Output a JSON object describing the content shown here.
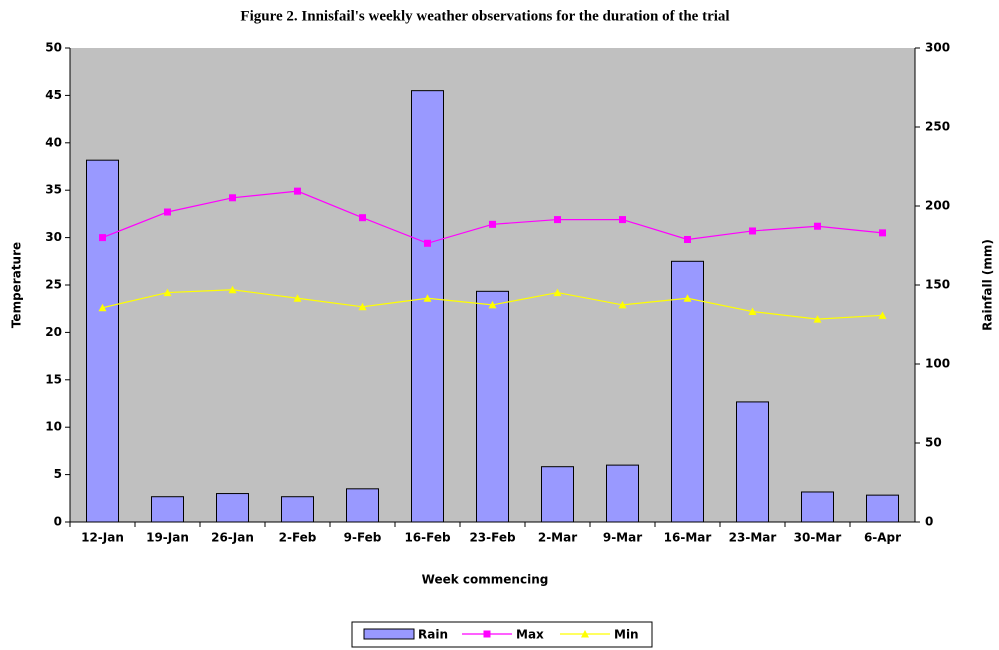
{
  "chart_data": {
    "type": "bar",
    "title": "Figure 2. Innisfail's weekly weather observations  for the duration  of the trial",
    "x_label": "Week commencing",
    "y_label": "Temperature",
    "y2_label": "Rainfall (mm)",
    "categories": [
      "12-Jan",
      "19-Jan",
      "26-Jan",
      "2-Feb",
      "9-Feb",
      "16-Feb",
      "23-Feb",
      "2-Mar",
      "9-Mar",
      "16-Mar",
      "23-Mar",
      "30-Mar",
      "6-Apr"
    ],
    "series": [
      {
        "name": "Rain",
        "type": "bar",
        "axis": "y2",
        "color": "#9999ff",
        "values": [
          229,
          16,
          18,
          16,
          21,
          273,
          146,
          35,
          36,
          165,
          76,
          19,
          17
        ]
      },
      {
        "name": "Max",
        "type": "line",
        "marker": "square",
        "color": "#ff00ff",
        "values": [
          30.0,
          32.7,
          34.2,
          34.9,
          32.1,
          29.4,
          31.4,
          31.9,
          31.9,
          29.8,
          30.7,
          31.2,
          30.5
        ]
      },
      {
        "name": "Min",
        "type": "line",
        "marker": "triangle",
        "color": "#ffff00",
        "values": [
          22.6,
          24.2,
          24.5,
          23.6,
          22.7,
          23.6,
          22.9,
          24.2,
          22.9,
          23.6,
          22.2,
          21.4,
          21.8
        ]
      }
    ],
    "ylim": [
      0,
      50
    ],
    "yticks": [
      0,
      5,
      10,
      15,
      20,
      25,
      30,
      35,
      40,
      45,
      50
    ],
    "y2lim": [
      0,
      300
    ],
    "y2ticks": [
      0,
      50,
      100,
      150,
      200,
      250,
      300
    ],
    "background": "#c0c0c0",
    "legend": "bottom"
  }
}
